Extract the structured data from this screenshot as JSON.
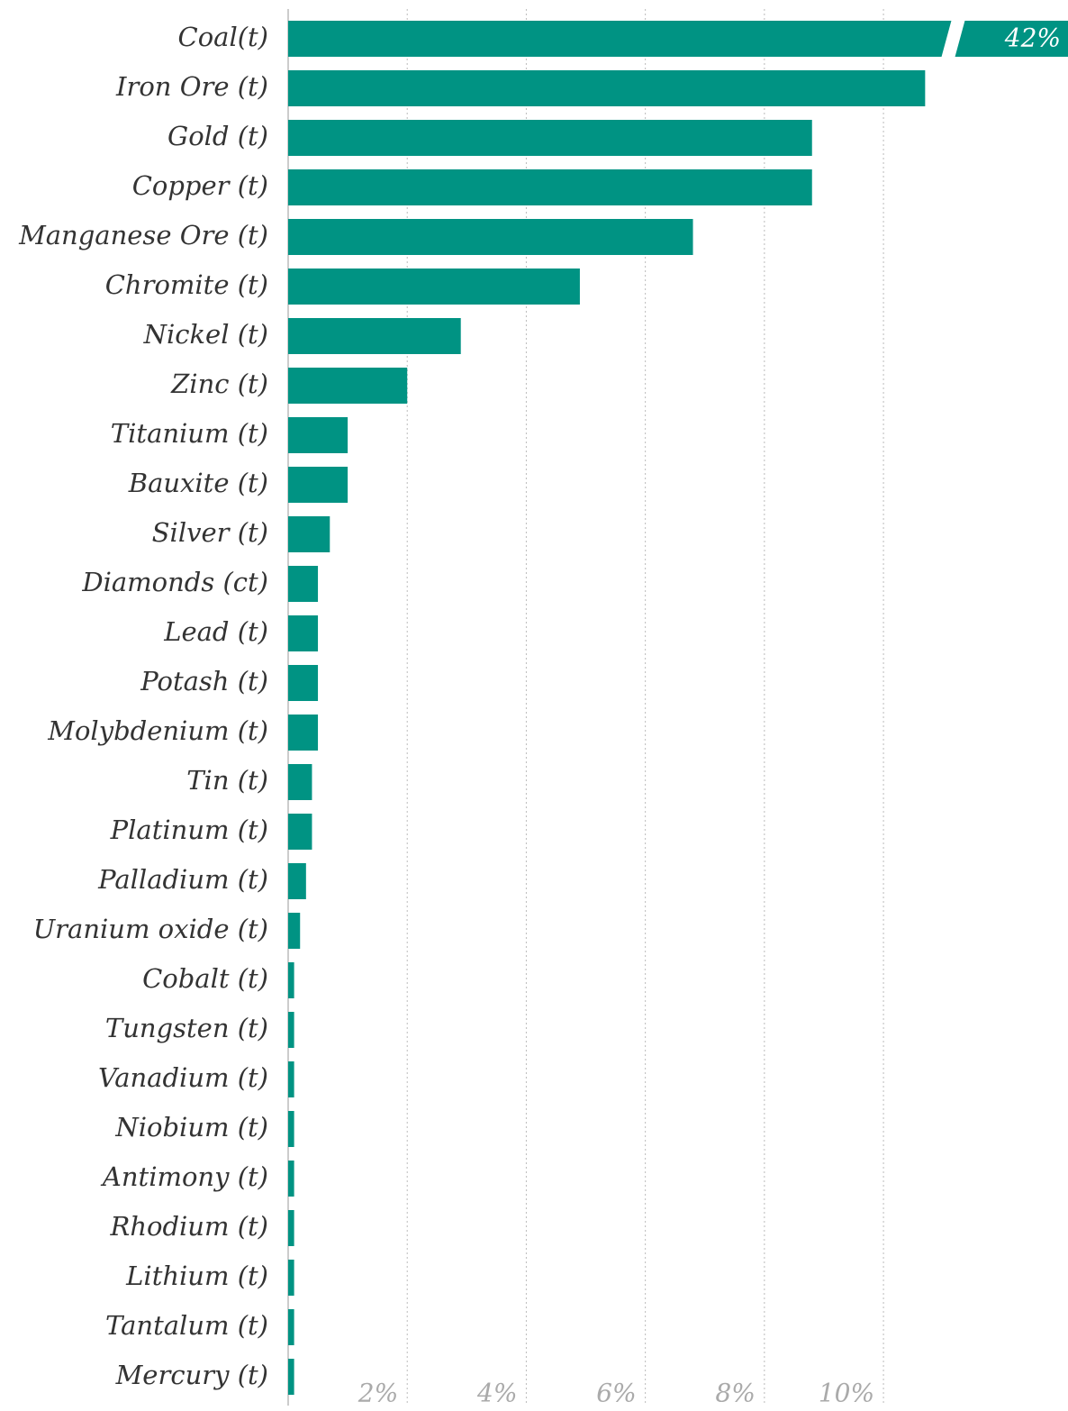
{
  "chart_data": {
    "type": "bar",
    "orientation": "horizontal",
    "color": "#009383",
    "categories": [
      "Coal(t)",
      "Iron Ore (t)",
      "Gold (t)",
      "Copper (t)",
      "Manganese Ore (t)",
      "Chromite (t)",
      "Nickel (t)",
      "Zinc (t)",
      "Titanium (t)",
      "Bauxite (t)",
      "Silver (t)",
      "Diamonds (ct)",
      "Lead (t)",
      "Potash (t)",
      "Molybdenium (t)",
      "Tin (t)",
      "Platinum (t)",
      "Palladium (t)",
      "Uranium oxide (t)",
      "Cobalt (t)",
      "Tungsten (t)",
      "Vanadium (t)",
      "Niobium (t)",
      "Antimony (t)",
      "Rhodium (t)",
      "Lithium (t)",
      "Tantalum (t)",
      "Mercury (t)"
    ],
    "values": [
      42,
      10.7,
      8.8,
      8.8,
      6.8,
      4.9,
      2.9,
      2.0,
      1.0,
      1.0,
      0.7,
      0.5,
      0.5,
      0.5,
      0.5,
      0.4,
      0.4,
      0.3,
      0.2,
      0.1,
      0.1,
      0.1,
      0.1,
      0.1,
      0.1,
      0.1,
      0.1,
      0.1
    ],
    "value_labels": [
      "42%",
      null,
      null,
      null,
      null,
      null,
      null,
      null,
      null,
      null,
      null,
      null,
      null,
      null,
      null,
      null,
      null,
      null,
      null,
      null,
      null,
      null,
      null,
      null,
      null,
      null,
      null,
      null
    ],
    "xlim": [
      0,
      13.1
    ],
    "xticks": [
      {
        "value": 2,
        "label": "2%"
      },
      {
        "value": 4,
        "label": "4%"
      },
      {
        "value": 6,
        "label": "6%"
      },
      {
        "value": 8,
        "label": "8%"
      },
      {
        "value": 10,
        "label": "10%"
      }
    ],
    "grid": true
  }
}
